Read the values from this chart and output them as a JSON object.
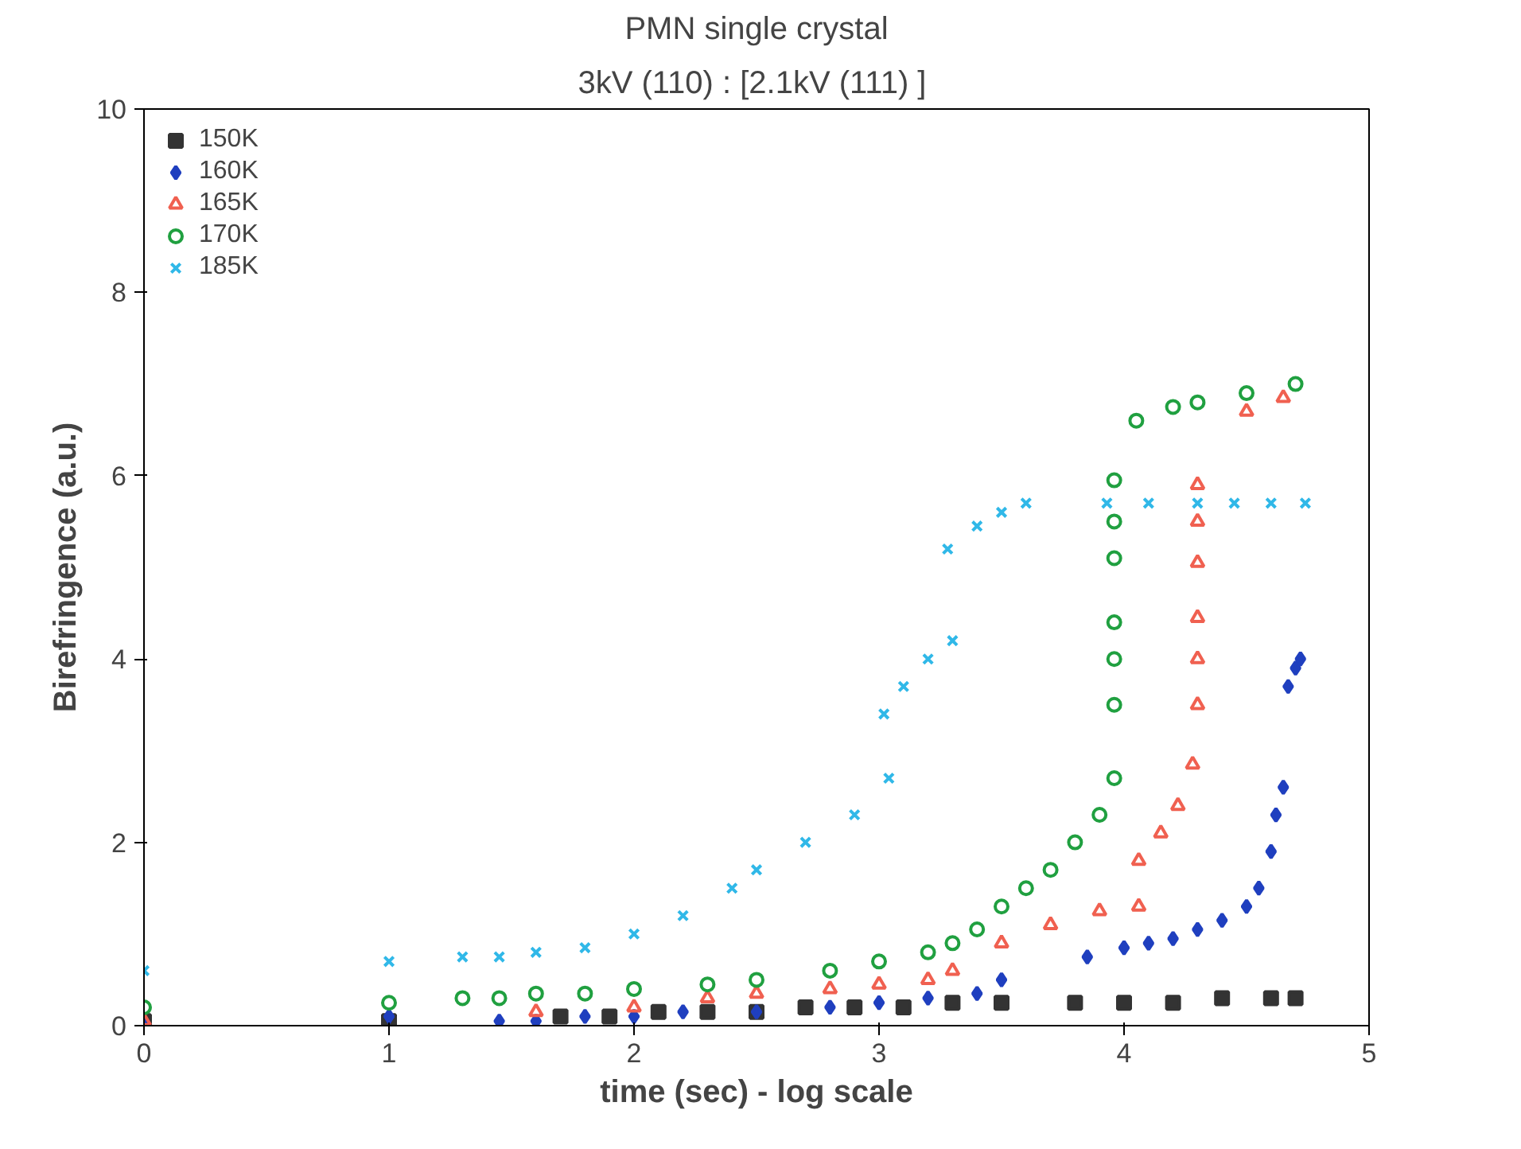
{
  "chart_data": {
    "type": "scatter",
    "title": "PMN single crystal",
    "subtitle": "3kV (110)  : [2.1kV (111) ]",
    "xlabel": "time (sec) - log scale",
    "ylabel": "Birefringence (a.u.)",
    "xlim": [
      0,
      5
    ],
    "ylim": [
      0,
      10
    ],
    "xticks": [
      0,
      1,
      2,
      3,
      4,
      5
    ],
    "yticks": [
      0,
      2,
      4,
      6,
      8,
      10
    ],
    "grid": false,
    "legend": "top left",
    "series": [
      {
        "name": "150K",
        "color": "#333333",
        "marker": "square",
        "x": [
          0,
          1,
          1.7,
          1.9,
          2.1,
          2.3,
          2.5,
          2.7,
          2.9,
          3.1,
          3.3,
          3.5,
          3.8,
          4.0,
          4.2,
          4.4,
          4.6,
          4.7
        ],
        "values": [
          0.05,
          0.05,
          0.1,
          0.1,
          0.15,
          0.15,
          0.15,
          0.2,
          0.2,
          0.2,
          0.25,
          0.25,
          0.25,
          0.25,
          0.25,
          0.3,
          0.3,
          0.3
        ]
      },
      {
        "name": "160K",
        "color": "#1f3fbf",
        "marker": "diamond",
        "x": [
          0,
          1,
          1.45,
          1.6,
          1.8,
          2.0,
          2.2,
          2.5,
          2.8,
          3.0,
          3.2,
          3.4,
          3.5,
          3.85,
          4.0,
          4.1,
          4.2,
          4.3,
          4.4,
          4.5,
          4.55,
          4.6,
          4.62,
          4.65,
          4.67,
          4.7,
          4.72
        ],
        "values": [
          0,
          0.1,
          0.05,
          0.05,
          0.1,
          0.1,
          0.15,
          0.15,
          0.2,
          0.25,
          0.3,
          0.35,
          0.5,
          0.75,
          0.85,
          0.9,
          0.95,
          1.05,
          1.15,
          1.3,
          1.5,
          1.9,
          2.3,
          2.6,
          3.7,
          3.9,
          4.0
        ]
      },
      {
        "name": "165K",
        "color": "#f06050",
        "marker": "triangle",
        "x": [
          0,
          1.6,
          2.0,
          2.3,
          2.5,
          2.8,
          3.0,
          3.2,
          3.3,
          3.5,
          3.7,
          3.9,
          4.06,
          4.06,
          4.15,
          4.22,
          4.28,
          4.3,
          4.3,
          4.3,
          4.3,
          4.3,
          4.3,
          4.5,
          4.65
        ],
        "values": [
          0.05,
          0.15,
          0.2,
          0.3,
          0.35,
          0.4,
          0.45,
          0.5,
          0.6,
          0.9,
          1.1,
          1.25,
          1.3,
          1.8,
          2.1,
          2.4,
          2.85,
          3.5,
          4.0,
          4.45,
          5.05,
          5.5,
          5.9,
          6.7,
          6.85
        ]
      },
      {
        "name": "170K",
        "color": "#20a040",
        "marker": "circle",
        "x": [
          0,
          1,
          1.3,
          1.45,
          1.6,
          1.8,
          2.0,
          2.3,
          2.5,
          2.8,
          3.0,
          3.2,
          3.3,
          3.4,
          3.5,
          3.6,
          3.7,
          3.8,
          3.9,
          3.96,
          3.96,
          3.96,
          3.96,
          3.96,
          3.96,
          3.96,
          4.05,
          4.2,
          4.3,
          4.5,
          4.7
        ],
        "values": [
          0.2,
          0.25,
          0.3,
          0.3,
          0.35,
          0.35,
          0.4,
          0.45,
          0.5,
          0.6,
          0.7,
          0.8,
          0.9,
          1.05,
          1.3,
          1.5,
          1.7,
          2.0,
          2.3,
          2.7,
          3.5,
          4.0,
          4.4,
          5.1,
          5.5,
          5.95,
          6.6,
          6.75,
          6.8,
          6.9,
          7.0
        ]
      },
      {
        "name": "185K",
        "color": "#30b8e8",
        "marker": "cross",
        "x": [
          0,
          1,
          1.3,
          1.45,
          1.6,
          1.8,
          2.0,
          2.2,
          2.4,
          2.5,
          2.7,
          2.9,
          3.04,
          3.02,
          3.1,
          3.2,
          3.3,
          3.28,
          3.4,
          3.5,
          3.6,
          3.93,
          4.1,
          4.3,
          4.45,
          4.6,
          4.74
        ],
        "values": [
          0.6,
          0.7,
          0.75,
          0.75,
          0.8,
          0.85,
          1.0,
          1.2,
          1.5,
          1.7,
          2.0,
          2.3,
          2.7,
          3.4,
          3.7,
          4.0,
          4.2,
          5.2,
          5.45,
          5.6,
          5.7,
          5.7,
          5.7,
          5.7,
          5.7,
          5.7,
          5.7
        ]
      }
    ]
  }
}
